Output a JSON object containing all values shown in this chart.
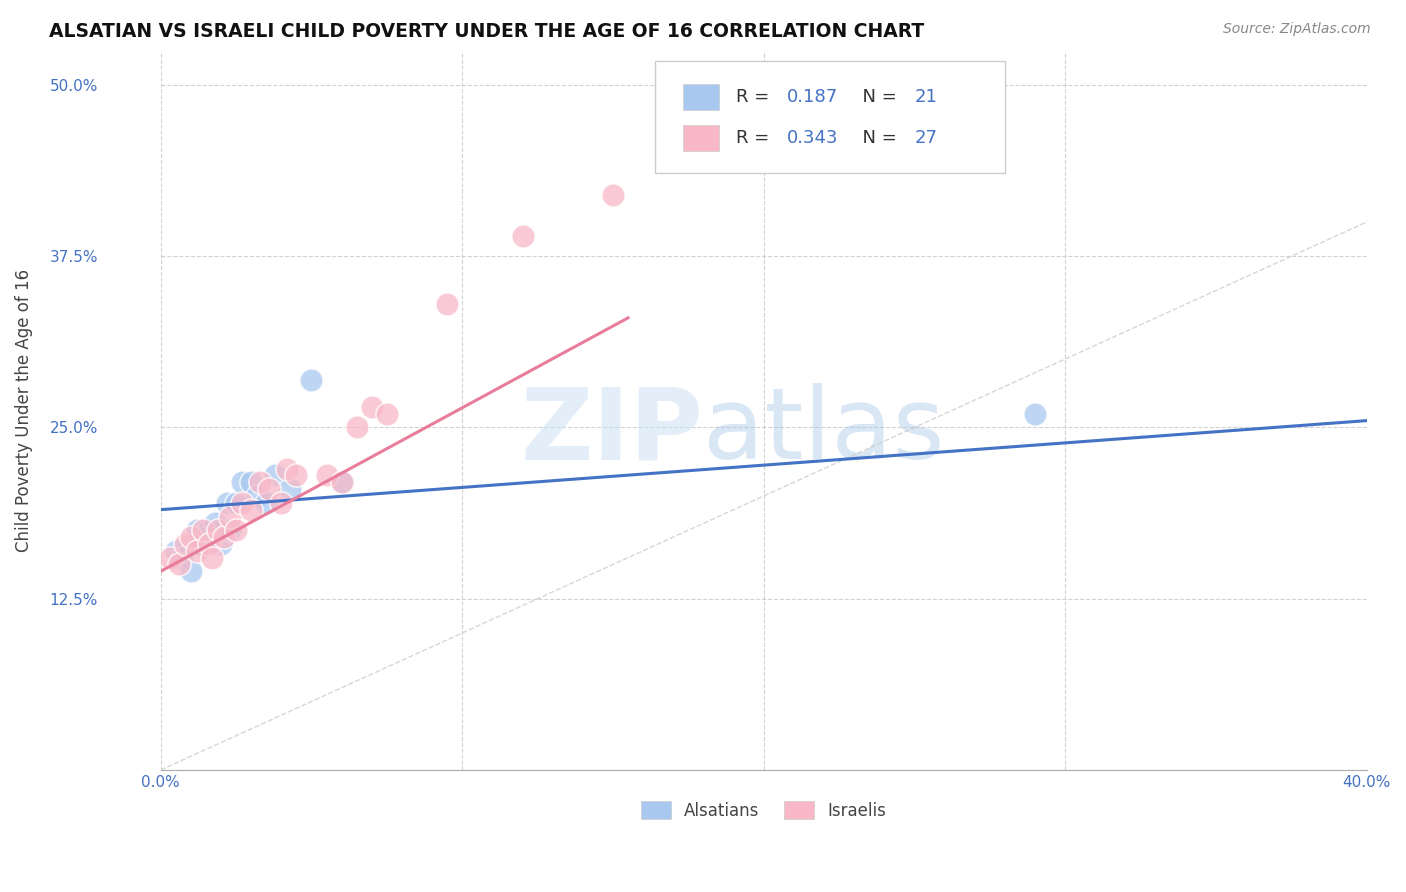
{
  "title": "ALSATIAN VS ISRAELI CHILD POVERTY UNDER THE AGE OF 16 CORRELATION CHART",
  "source": "Source: ZipAtlas.com",
  "ylabel": "Child Poverty Under the Age of 16",
  "xlim": [
    0.0,
    0.4
  ],
  "ylim": [
    0.0,
    0.525
  ],
  "xticks": [
    0.0,
    0.1,
    0.2,
    0.3,
    0.4
  ],
  "xticklabels": [
    "0.0%",
    "",
    "",
    "",
    "40.0%"
  ],
  "yticks": [
    0.0,
    0.125,
    0.25,
    0.375,
    0.5
  ],
  "yticklabels": [
    "",
    "12.5%",
    "25.0%",
    "37.5%",
    "50.0%"
  ],
  "background_color": "#ffffff",
  "grid_color": "#cccccc",
  "watermark_zip": "ZIP",
  "watermark_atlas": "atlas",
  "alsatian_R": "0.187",
  "alsatian_N": "21",
  "israeli_R": "0.343",
  "israeli_N": "27",
  "alsatian_color": "#A8C8F0",
  "israeli_color": "#F8B8C8",
  "alsatian_line_color": "#4472C4",
  "israeli_line_color": "#E87D9B",
  "alsatian_x": [
    0.005,
    0.007,
    0.01,
    0.012,
    0.013,
    0.015,
    0.016,
    0.018,
    0.02,
    0.022,
    0.023,
    0.025,
    0.027,
    0.03,
    0.032,
    0.035,
    0.038,
    0.043,
    0.05,
    0.06,
    0.29
  ],
  "alsatian_y": [
    0.16,
    0.155,
    0.145,
    0.175,
    0.165,
    0.17,
    0.175,
    0.18,
    0.165,
    0.195,
    0.175,
    0.195,
    0.21,
    0.21,
    0.2,
    0.195,
    0.215,
    0.205,
    0.285,
    0.21,
    0.26
  ],
  "israeli_x": [
    0.003,
    0.006,
    0.008,
    0.01,
    0.012,
    0.014,
    0.016,
    0.017,
    0.019,
    0.021,
    0.023,
    0.025,
    0.027,
    0.03,
    0.033,
    0.036,
    0.04,
    0.042,
    0.045,
    0.055,
    0.06,
    0.065,
    0.07,
    0.075,
    0.095,
    0.12,
    0.15
  ],
  "israeli_y": [
    0.155,
    0.15,
    0.165,
    0.17,
    0.16,
    0.175,
    0.165,
    0.155,
    0.175,
    0.17,
    0.185,
    0.175,
    0.195,
    0.19,
    0.21,
    0.205,
    0.195,
    0.22,
    0.215,
    0.215,
    0.21,
    0.25,
    0.265,
    0.26,
    0.34,
    0.39,
    0.42
  ],
  "alsatian_trend_x": [
    0.0,
    0.4
  ],
  "alsatian_trend_y": [
    0.19,
    0.255
  ],
  "israeli_trend_x": [
    0.0,
    0.155
  ],
  "israeli_trend_y": [
    0.145,
    0.33
  ]
}
